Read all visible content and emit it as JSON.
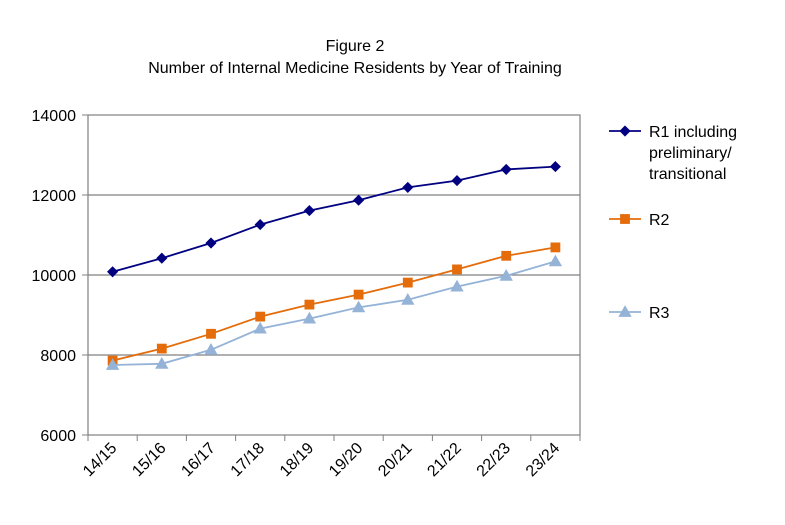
{
  "chart_data": {
    "type": "line",
    "title": "Figure 2",
    "subtitle": "Number of Internal Medicine Residents by Year of Training",
    "xlabel": "",
    "ylabel": "",
    "categories": [
      "14/15",
      "15/16",
      "16/17",
      "17/18",
      "18/19",
      "19/20",
      "20/21",
      "21/22",
      "22/23",
      "23/24"
    ],
    "ylim": [
      6000,
      14000
    ],
    "yticks": [
      6000,
      8000,
      10000,
      12000,
      14000
    ],
    "grid": true,
    "legend_position": "right",
    "series": [
      {
        "name": "R1 including preliminary/ transitional",
        "legend_lines": [
          "R1 including",
          "preliminary/",
          "transitional"
        ],
        "color": "#000080",
        "marker": "diamond",
        "values": [
          10080,
          10420,
          10800,
          11260,
          11610,
          11870,
          12190,
          12360,
          12640,
          12710
        ]
      },
      {
        "name": "R2",
        "legend_lines": [
          "R2"
        ],
        "color": "#E46C0A",
        "marker": "square",
        "values": [
          7860,
          8160,
          8530,
          8960,
          9260,
          9510,
          9810,
          10140,
          10480,
          10690
        ]
      },
      {
        "name": "R3",
        "legend_lines": [
          "R3"
        ],
        "color": "#95B3D7",
        "marker": "triangle",
        "values": [
          7750,
          7780,
          8130,
          8660,
          8910,
          9190,
          9380,
          9710,
          9980,
          10340
        ]
      }
    ]
  }
}
